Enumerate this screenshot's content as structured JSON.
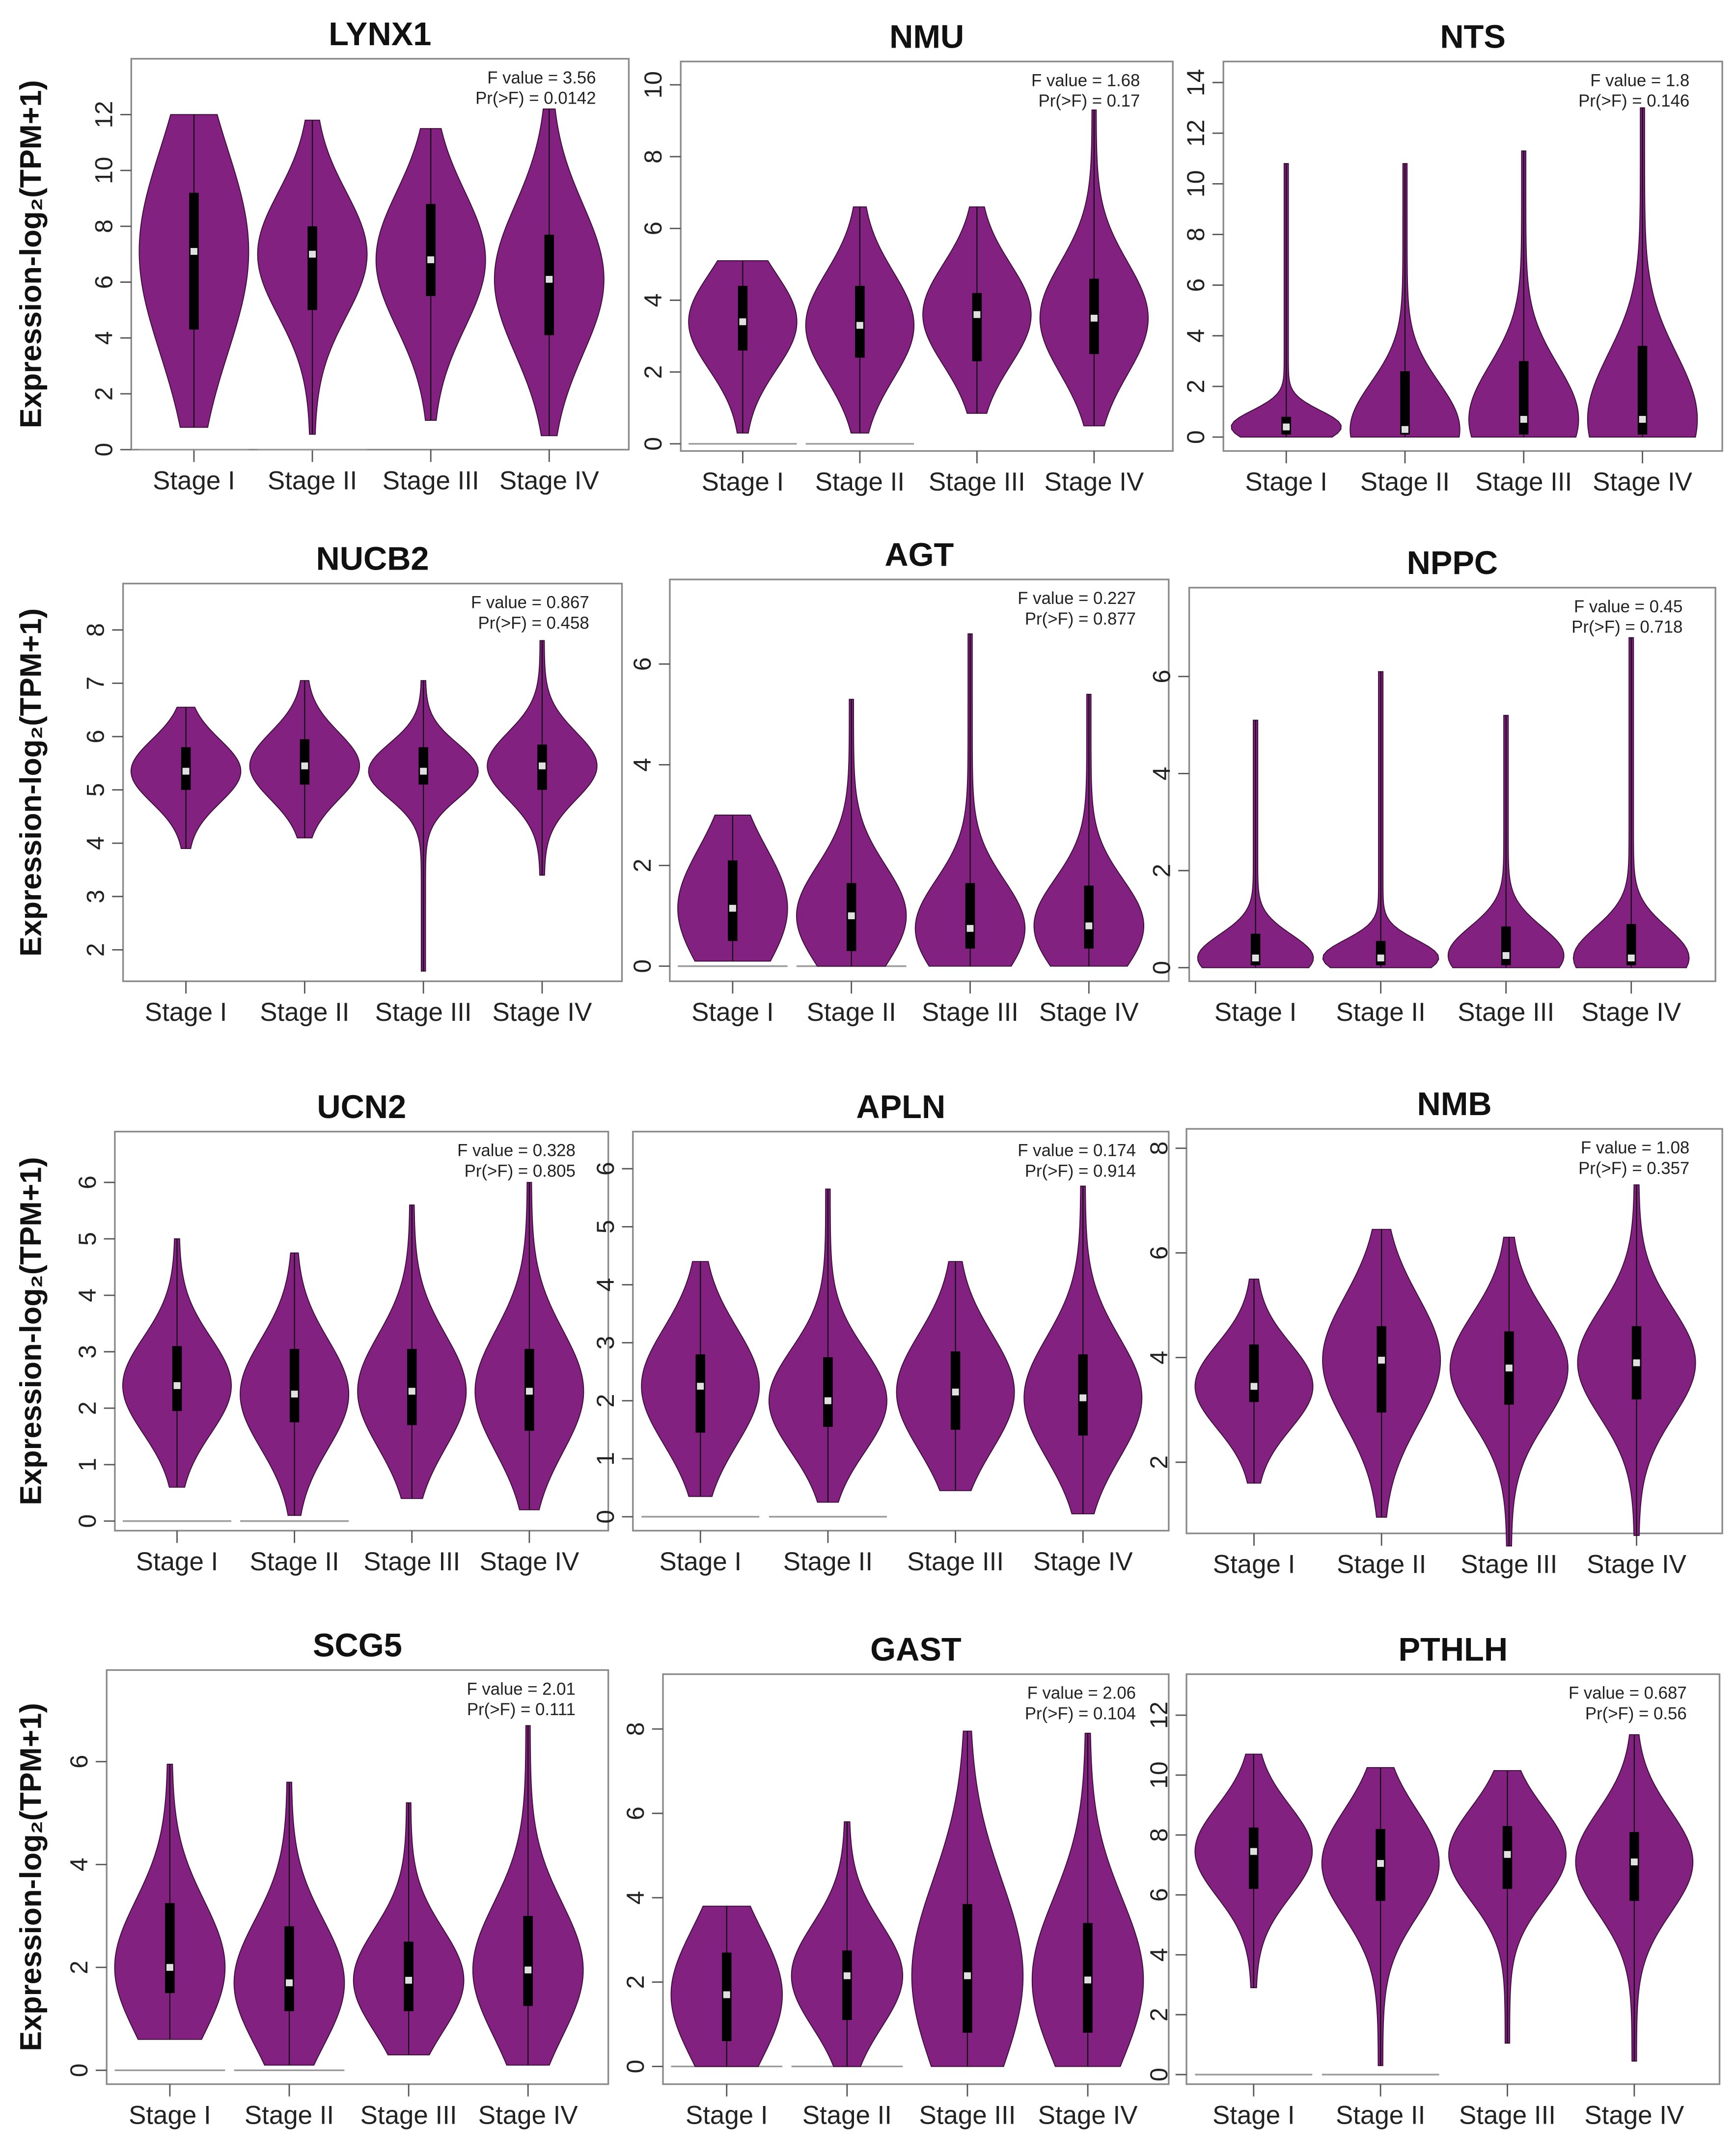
{
  "violin_color": "#832181",
  "chart_data": [
    {
      "type": "violin",
      "title": "LYNX1",
      "ylabel": "Expression-log₂(TPM+1)",
      "f_label": "F value = 3.56",
      "p_label": "Pr(>F) = 0.0142",
      "ylim": [
        0,
        14
      ],
      "yticks": [
        0,
        2,
        4,
        6,
        8,
        10,
        12
      ],
      "categories": [
        "Stage I",
        "Stage II",
        "Stage III",
        "Stage IV"
      ],
      "zero_baseline": [
        true,
        true,
        false,
        false
      ],
      "series": [
        {
          "min": 0.8,
          "q1": 4.3,
          "median": 7.1,
          "q3": 9.2,
          "max": 12
        },
        {
          "min": 0.55,
          "q1": 5.0,
          "median": 7.0,
          "q3": 8.0,
          "max": 11.8
        },
        {
          "min": 1.05,
          "q1": 5.5,
          "median": 6.8,
          "q3": 8.8,
          "max": 11.5
        },
        {
          "min": 0.5,
          "q1": 4.1,
          "median": 6.1,
          "q3": 7.7,
          "max": 12.2
        }
      ]
    },
    {
      "type": "violin",
      "title": "NMU",
      "ylabel": "",
      "f_label": "F value = 1.68",
      "p_label": "Pr(>F) = 0.17",
      "ylim": [
        -0.2,
        10.65
      ],
      "yticks": [
        0,
        2,
        4,
        6,
        8,
        10
      ],
      "categories": [
        "Stage I",
        "Stage II",
        "Stage III",
        "Stage IV"
      ],
      "zero_baseline": [
        true,
        true,
        false,
        false
      ],
      "series": [
        {
          "min": 0.3,
          "q1": 2.6,
          "median": 3.4,
          "q3": 4.4,
          "max": 5.1
        },
        {
          "min": 0.3,
          "q1": 2.4,
          "median": 3.3,
          "q3": 4.4,
          "max": 6.6
        },
        {
          "min": 0.85,
          "q1": 2.3,
          "median": 3.6,
          "q3": 4.2,
          "max": 6.6
        },
        {
          "min": 0.5,
          "q1": 2.5,
          "median": 3.5,
          "q3": 4.6,
          "max": 9.3
        }
      ]
    },
    {
      "type": "violin",
      "title": "NTS",
      "ylabel": "",
      "f_label": "F value = 1.8",
      "p_label": "Pr(>F) = 0.146",
      "ylim": [
        -0.55,
        14.83
      ],
      "yticks": [
        0,
        2,
        4,
        6,
        8,
        10,
        12,
        14
      ],
      "categories": [
        "Stage I",
        "Stage II",
        "Stage III",
        "Stage IV"
      ],
      "zero_baseline": [
        false,
        false,
        false,
        false
      ],
      "series": [
        {
          "min": 0,
          "q1": 0.1,
          "median": 0.4,
          "q3": 0.8,
          "max": 10.8
        },
        {
          "min": 0,
          "q1": 0.1,
          "median": 0.3,
          "q3": 2.6,
          "max": 10.8
        },
        {
          "min": 0,
          "q1": 0.1,
          "median": 0.7,
          "q3": 3.0,
          "max": 11.3
        },
        {
          "min": 0,
          "q1": 0.1,
          "median": 0.7,
          "q3": 3.6,
          "max": 13.0
        }
      ]
    },
    {
      "type": "violin",
      "title": "NUCB2",
      "ylabel": "Expression-log₂(TPM+1)",
      "f_label": "F value = 0.867",
      "p_label": "Pr(>F) = 0.458",
      "ylim": [
        1.41,
        8.87
      ],
      "yticks": [
        2,
        3,
        4,
        5,
        6,
        7,
        8
      ],
      "categories": [
        "Stage I",
        "Stage II",
        "Stage III",
        "Stage IV"
      ],
      "zero_baseline": [
        false,
        false,
        false,
        false
      ],
      "series": [
        {
          "min": 3.9,
          "q1": 5.0,
          "median": 5.35,
          "q3": 5.8,
          "max": 6.55
        },
        {
          "min": 4.1,
          "q1": 5.1,
          "median": 5.45,
          "q3": 5.95,
          "max": 7.05
        },
        {
          "min": 1.6,
          "q1": 5.1,
          "median": 5.35,
          "q3": 5.8,
          "max": 7.05
        },
        {
          "min": 3.4,
          "q1": 5.0,
          "median": 5.45,
          "q3": 5.85,
          "max": 7.8
        }
      ]
    },
    {
      "type": "violin",
      "title": "AGT",
      "ylabel": "",
      "f_label": "F value = 0.227",
      "p_label": "Pr(>F) = 0.877",
      "ylim": [
        -0.3,
        7.68
      ],
      "yticks": [
        0,
        2,
        4,
        6
      ],
      "categories": [
        "Stage I",
        "Stage II",
        "Stage III",
        "Stage IV"
      ],
      "zero_baseline": [
        true,
        true,
        false,
        false
      ],
      "series": [
        {
          "min": 0.1,
          "q1": 0.5,
          "median": 1.15,
          "q3": 2.1,
          "max": 3.0
        },
        {
          "min": 0,
          "q1": 0.3,
          "median": 1.0,
          "q3": 1.65,
          "max": 5.3
        },
        {
          "min": 0,
          "q1": 0.35,
          "median": 0.75,
          "q3": 1.65,
          "max": 6.6
        },
        {
          "min": 0,
          "q1": 0.35,
          "median": 0.8,
          "q3": 1.6,
          "max": 5.4
        }
      ]
    },
    {
      "type": "violin",
      "title": "NPPC",
      "ylabel": "",
      "f_label": "F value = 0.45",
      "p_label": "Pr(>F) = 0.718",
      "ylim": [
        -0.28,
        7.83
      ],
      "yticks": [
        0,
        2,
        4,
        6
      ],
      "categories": [
        "Stage I",
        "Stage II",
        "Stage III",
        "Stage IV"
      ],
      "zero_baseline": [
        false,
        false,
        false,
        false
      ],
      "series": [
        {
          "min": 0,
          "q1": 0.05,
          "median": 0.2,
          "q3": 0.7,
          "max": 5.1
        },
        {
          "min": 0,
          "q1": 0.05,
          "median": 0.2,
          "q3": 0.55,
          "max": 6.1
        },
        {
          "min": 0,
          "q1": 0.05,
          "median": 0.25,
          "q3": 0.85,
          "max": 5.2
        },
        {
          "min": 0,
          "q1": 0.05,
          "median": 0.2,
          "q3": 0.9,
          "max": 6.8
        }
      ]
    },
    {
      "type": "violin",
      "title": "UCN2",
      "ylabel": "Expression-log₂(TPM+1)",
      "f_label": "F value = 0.328",
      "p_label": "Pr(>F) = 0.805",
      "ylim": [
        -0.17,
        6.9
      ],
      "yticks": [
        0,
        1,
        2,
        3,
        4,
        5,
        6
      ],
      "categories": [
        "Stage I",
        "Stage II",
        "Stage III",
        "Stage IV"
      ],
      "zero_baseline": [
        true,
        true,
        false,
        false
      ],
      "series": [
        {
          "min": 0.6,
          "q1": 1.95,
          "median": 2.4,
          "q3": 3.1,
          "max": 5.0
        },
        {
          "min": 0.1,
          "q1": 1.75,
          "median": 2.25,
          "q3": 3.05,
          "max": 4.75
        },
        {
          "min": 0.4,
          "q1": 1.7,
          "median": 2.3,
          "q3": 3.05,
          "max": 5.6
        },
        {
          "min": 0.2,
          "q1": 1.6,
          "median": 2.3,
          "q3": 3.05,
          "max": 6.0
        }
      ]
    },
    {
      "type": "violin",
      "title": "APLN",
      "ylabel": "",
      "f_label": "F value = 0.174",
      "p_label": "Pr(>F) = 0.914",
      "ylim": [
        -0.24,
        6.64
      ],
      "yticks": [
        0,
        1,
        2,
        3,
        4,
        5,
        6
      ],
      "categories": [
        "Stage I",
        "Stage II",
        "Stage III",
        "Stage IV"
      ],
      "zero_baseline": [
        true,
        true,
        false,
        false
      ],
      "series": [
        {
          "min": 0.35,
          "q1": 1.45,
          "median": 2.25,
          "q3": 2.8,
          "max": 4.4
        },
        {
          "min": 0.25,
          "q1": 1.55,
          "median": 2.0,
          "q3": 2.75,
          "max": 5.65
        },
        {
          "min": 0.45,
          "q1": 1.5,
          "median": 2.15,
          "q3": 2.85,
          "max": 4.4
        },
        {
          "min": 0.05,
          "q1": 1.4,
          "median": 2.05,
          "q3": 2.8,
          "max": 5.7
        }
      ]
    },
    {
      "type": "violin",
      "title": "NMB",
      "ylabel": "",
      "f_label": "F value = 1.08",
      "p_label": "Pr(>F) = 0.357",
      "ylim": [
        0.64,
        8.37
      ],
      "yticks": [
        2,
        4,
        6,
        8
      ],
      "categories": [
        "Stage I",
        "Stage II",
        "Stage III",
        "Stage IV"
      ],
      "zero_baseline": [
        false,
        false,
        false,
        false
      ],
      "series": [
        {
          "min": 1.6,
          "q1": 3.15,
          "median": 3.45,
          "q3": 4.25,
          "max": 5.5
        },
        {
          "min": 0.95,
          "q1": 2.95,
          "median": 3.95,
          "q3": 4.6,
          "max": 6.45
        },
        {
          "min": 0.4,
          "q1": 3.1,
          "median": 3.8,
          "q3": 4.5,
          "max": 6.3
        },
        {
          "min": 0.6,
          "q1": 3.2,
          "median": 3.9,
          "q3": 4.6,
          "max": 7.3
        }
      ]
    },
    {
      "type": "violin",
      "title": "SCG5",
      "ylabel": "Expression-log₂(TPM+1)",
      "f_label": "F value = 2.01",
      "p_label": "Pr(>F) = 0.111",
      "ylim": [
        -0.27,
        7.78
      ],
      "yticks": [
        0,
        2,
        4,
        6
      ],
      "categories": [
        "Stage I",
        "Stage II",
        "Stage III",
        "Stage IV"
      ],
      "zero_baseline": [
        true,
        true,
        false,
        false
      ],
      "series": [
        {
          "min": 0.6,
          "q1": 1.5,
          "median": 2.0,
          "q3": 3.25,
          "max": 5.95
        },
        {
          "min": 0.1,
          "q1": 1.15,
          "median": 1.7,
          "q3": 2.8,
          "max": 5.6
        },
        {
          "min": 0.3,
          "q1": 1.15,
          "median": 1.75,
          "q3": 2.5,
          "max": 5.2
        },
        {
          "min": 0.1,
          "q1": 1.25,
          "median": 1.95,
          "q3": 3.0,
          "max": 6.7
        }
      ]
    },
    {
      "type": "violin",
      "title": "GAST",
      "ylabel": "",
      "f_label": "F value = 2.06",
      "p_label": "Pr(>F) = 0.104",
      "ylim": [
        -0.42,
        9.3
      ],
      "yticks": [
        0,
        2,
        4,
        6,
        8
      ],
      "categories": [
        "Stage I",
        "Stage II",
        "Stage III",
        "Stage IV"
      ],
      "zero_baseline": [
        true,
        true,
        false,
        false
      ],
      "series": [
        {
          "min": 0,
          "q1": 0.6,
          "median": 1.7,
          "q3": 2.7,
          "max": 3.8
        },
        {
          "min": 0,
          "q1": 1.1,
          "median": 2.15,
          "q3": 2.75,
          "max": 5.8
        },
        {
          "min": 0,
          "q1": 0.8,
          "median": 2.15,
          "q3": 3.85,
          "max": 7.95
        },
        {
          "min": 0,
          "q1": 0.8,
          "median": 2.05,
          "q3": 3.4,
          "max": 7.9
        }
      ]
    },
    {
      "type": "violin",
      "title": "PTHLH",
      "ylabel": "",
      "f_label": "F value = 0.687",
      "p_label": "Pr(>F) = 0.56",
      "ylim": [
        -0.32,
        13.37
      ],
      "yticks": [
        0,
        2,
        4,
        6,
        8,
        10,
        12
      ],
      "categories": [
        "Stage I",
        "Stage II",
        "Stage III",
        "Stage IV"
      ],
      "zero_baseline": [
        true,
        true,
        false,
        false
      ],
      "series": [
        {
          "min": 2.9,
          "q1": 6.2,
          "median": 7.45,
          "q3": 8.25,
          "max": 10.7
        },
        {
          "min": 0.3,
          "q1": 5.8,
          "median": 7.05,
          "q3": 8.2,
          "max": 10.25
        },
        {
          "min": 1.05,
          "q1": 6.2,
          "median": 7.35,
          "q3": 8.3,
          "max": 10.15
        },
        {
          "min": 0.45,
          "q1": 5.8,
          "median": 7.1,
          "q3": 8.1,
          "max": 11.35
        }
      ]
    }
  ]
}
